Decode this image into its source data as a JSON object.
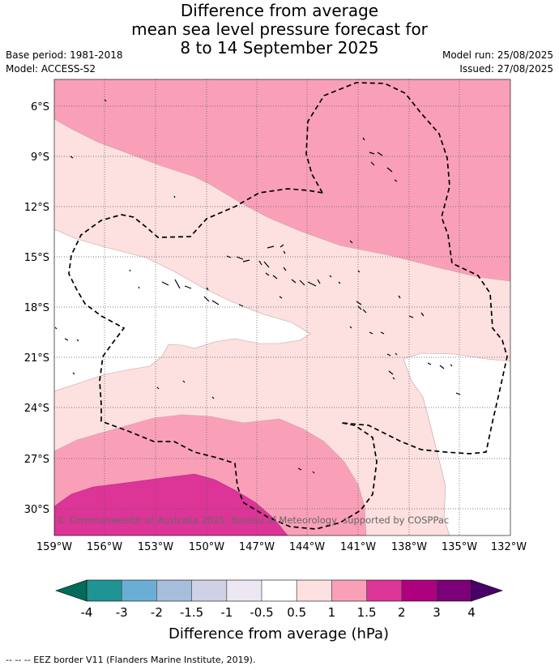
{
  "title": {
    "line1": "Difference from average",
    "line2": "mean sea level pressure forecast for",
    "line3": "8 to 14 September 2025"
  },
  "meta": {
    "base_period": "Base period: 1981-2018",
    "model": "Model: ACCESS-S2",
    "model_run": "Model run: 25/08/2025",
    "issued": "Issued: 27/08/2025"
  },
  "map": {
    "lat_labels": [
      "6°S",
      "9°S",
      "12°S",
      "15°S",
      "18°S",
      "21°S",
      "24°S",
      "27°S",
      "30°S"
    ],
    "lon_labels": [
      "159°W",
      "156°W",
      "153°W",
      "150°W",
      "147°W",
      "144°W",
      "141°W",
      "138°W",
      "135°W",
      "132°W"
    ],
    "copyright": "© Commonwealth of Australia 2025, Bureau of Meteorology, supported by COSPPac"
  },
  "colorbar": {
    "label": "Difference from average (hPa)",
    "ticks": [
      "-4",
      "-3",
      "-2",
      "-1.5",
      "-1",
      "-0.5",
      "0.5",
      "1",
      "1.5",
      "2",
      "3",
      "4"
    ],
    "colors": [
      "#1f9494",
      "#6aaed6",
      "#a6bddb",
      "#d0d1e6",
      "#ece7f2",
      "#ffffff",
      "#fde0e0",
      "#f9a0b8",
      "#dd3497",
      "#ae017e",
      "#7a0177"
    ],
    "under_color": "#016c59",
    "over_color": "#49006a",
    "field_colors": {
      "white": "#ffffff",
      "light": "#fde0e0",
      "pink": "#f9a0b8",
      "magenta": "#dd3497"
    }
  },
  "footnote": "--  --  -- EEZ border V11 (Flanders Marine Institute, 2019)."
}
